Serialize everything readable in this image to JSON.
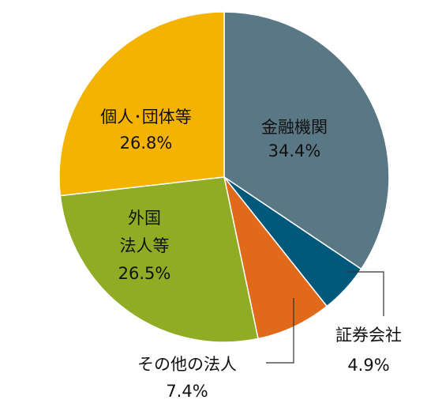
{
  "chart_data": {
    "type": "pie",
    "unit": "%",
    "slices": [
      {
        "label": "金融機関",
        "value": 34.4,
        "value_label": "34.4%",
        "color": "#5a7785"
      },
      {
        "label": "証券会社",
        "value": 4.9,
        "value_label": "4.9%",
        "color": "#00587a"
      },
      {
        "label": "その他の法人",
        "value": 7.4,
        "value_label": "7.4%",
        "color": "#e0691a"
      },
      {
        "label": "外国法人等",
        "label_lines": [
          "外国",
          "法人等"
        ],
        "value": 26.5,
        "value_label": "26.5%",
        "color": "#8fac24"
      },
      {
        "label": "個人･団体等",
        "value": 26.8,
        "value_label": "26.8%",
        "color": "#f5b301"
      }
    ],
    "start": "12 o'clock",
    "direction": "clockwise",
    "legend": "none"
  }
}
